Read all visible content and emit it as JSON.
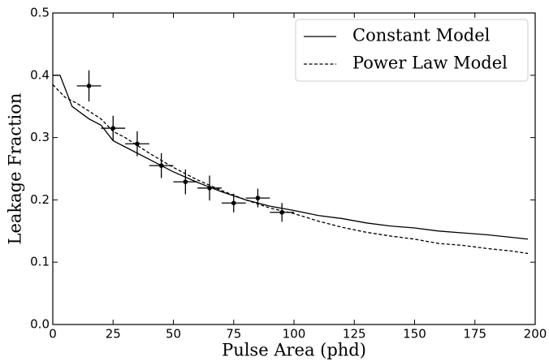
{
  "chart_data": {
    "type": "line",
    "xlabel": "Pulse Area (phd)",
    "ylabel": "Leakage Fraction",
    "xlim": [
      0,
      200
    ],
    "ylim": [
      0,
      0.5
    ],
    "xticks": [
      0,
      25,
      50,
      75,
      100,
      125,
      150,
      175,
      200
    ],
    "yticks": [
      {
        "value": 0,
        "label": "0.0"
      },
      0.1,
      0.2,
      0.3,
      0.4,
      0.5
    ],
    "legend": "upper right",
    "series": [
      {
        "name": "Constant Model",
        "color": "#000000",
        "style": "solid",
        "x": [
          0,
          3,
          8,
          15,
          20,
          25,
          30,
          40,
          50,
          60,
          70,
          80,
          90,
          100,
          110,
          120,
          130,
          140,
          150,
          160,
          170,
          180,
          190,
          197
        ],
        "values": [
          0.4,
          0.4,
          0.35,
          0.33,
          0.32,
          0.295,
          0.285,
          0.265,
          0.245,
          0.228,
          0.213,
          0.2,
          0.19,
          0.183,
          0.175,
          0.17,
          0.163,
          0.158,
          0.155,
          0.15,
          0.147,
          0.144,
          0.14,
          0.137
        ]
      },
      {
        "name": "Power Law Model",
        "color": "#000000",
        "style": "dashed",
        "x": [
          0,
          5,
          10,
          20,
          25,
          30,
          40,
          50,
          60,
          70,
          80,
          90,
          100,
          110,
          120,
          130,
          140,
          150,
          160,
          170,
          180,
          190,
          197
        ],
        "values": [
          0.385,
          0.365,
          0.355,
          0.33,
          0.31,
          0.3,
          0.275,
          0.252,
          0.232,
          0.215,
          0.2,
          0.187,
          0.178,
          0.166,
          0.156,
          0.148,
          0.142,
          0.137,
          0.13,
          0.127,
          0.122,
          0.118,
          0.114
        ]
      }
    ],
    "points": {
      "color": "#000000",
      "x": [
        15,
        25,
        35,
        45,
        55,
        65,
        75,
        85,
        95
      ],
      "values": [
        0.383,
        0.315,
        0.29,
        0.255,
        0.229,
        0.219,
        0.195,
        0.203,
        0.18
      ],
      "xerr": [
        5,
        5,
        5,
        5,
        5,
        5,
        5,
        5,
        5
      ],
      "yerr": [
        0.025,
        0.02,
        0.02,
        0.02,
        0.02,
        0.02,
        0.015,
        0.015,
        0.015
      ]
    }
  }
}
